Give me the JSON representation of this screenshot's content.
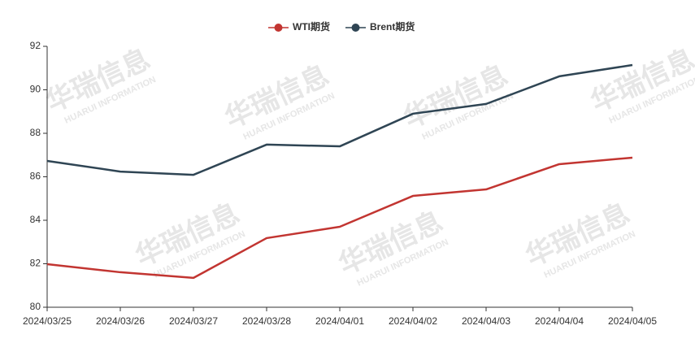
{
  "watermark": {
    "title": "华瑞信息",
    "subtitle": "HUARUI INFORMATION"
  },
  "chart_data": {
    "type": "line",
    "categories": [
      "2024/03/25",
      "2024/03/26",
      "2024/03/27",
      "2024/03/28",
      "2024/04/01",
      "2024/04/02",
      "2024/04/03",
      "2024/04/04",
      "2024/04/05"
    ],
    "series": [
      {
        "name": "WTI期货",
        "color": "#c23531",
        "values": [
          81.98,
          81.61,
          81.35,
          83.18,
          83.7,
          85.12,
          85.42,
          86.58,
          86.88
        ]
      },
      {
        "name": "Brent期货",
        "color": "#2f4554",
        "values": [
          86.73,
          86.24,
          86.09,
          87.48,
          87.4,
          88.9,
          89.35,
          90.62,
          91.14
        ]
      }
    ],
    "ylim": [
      80,
      92
    ],
    "yticks": [
      80,
      82,
      84,
      86,
      88,
      90,
      92
    ],
    "grid": false,
    "legend": "top"
  }
}
